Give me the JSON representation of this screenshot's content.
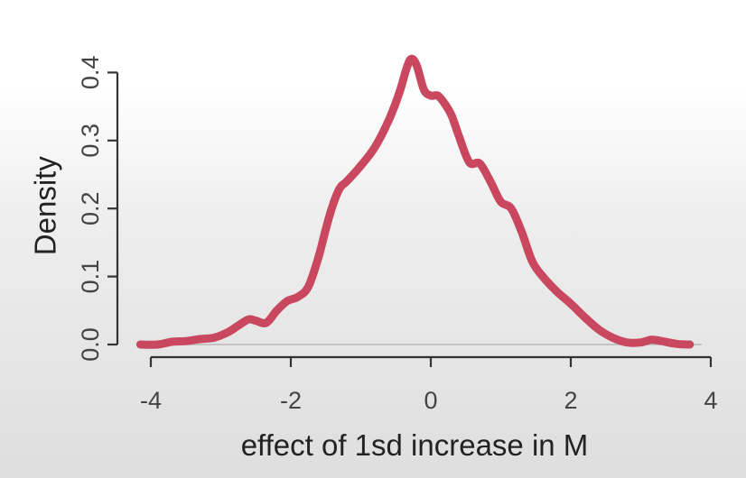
{
  "chart_data": {
    "type": "line",
    "title": "",
    "xlabel": "effect of 1sd increase in M",
    "ylabel": "Density",
    "xlim": [
      -4.15,
      4.0
    ],
    "ylim": [
      0.0,
      0.44
    ],
    "x_ticks": [
      -4,
      -2,
      0,
      2,
      4
    ],
    "x_tick_labels": [
      "-4",
      "-2",
      "0",
      "2",
      "4"
    ],
    "y_ticks": [
      0.0,
      0.1,
      0.2,
      0.3,
      0.4
    ],
    "y_tick_labels": [
      "0.0",
      "0.1",
      "0.2",
      "0.3",
      "0.4"
    ],
    "grid": false,
    "reference_line_y": 0.0,
    "series": [
      {
        "color": "#c9485f",
        "x": [
          -4.15,
          -3.9,
          -3.7,
          -3.5,
          -3.3,
          -3.1,
          -2.9,
          -2.75,
          -2.6,
          -2.5,
          -2.35,
          -2.2,
          -2.05,
          -1.9,
          -1.75,
          -1.6,
          -1.5,
          -1.4,
          -1.3,
          -1.2,
          -1.0,
          -0.8,
          -0.6,
          -0.45,
          -0.35,
          -0.28,
          -0.2,
          -0.1,
          0.0,
          0.1,
          0.2,
          0.3,
          0.4,
          0.55,
          0.7,
          0.85,
          1.0,
          1.15,
          1.3,
          1.45,
          1.6,
          1.8,
          2.0,
          2.2,
          2.4,
          2.6,
          2.8,
          3.0,
          3.15,
          3.3,
          3.5,
          3.7
        ],
        "y": [
          0.0,
          0.0,
          0.004,
          0.005,
          0.008,
          0.01,
          0.018,
          0.028,
          0.037,
          0.035,
          0.032,
          0.05,
          0.064,
          0.07,
          0.085,
          0.13,
          0.17,
          0.205,
          0.23,
          0.24,
          0.263,
          0.29,
          0.33,
          0.37,
          0.405,
          0.42,
          0.41,
          0.375,
          0.366,
          0.366,
          0.354,
          0.336,
          0.307,
          0.268,
          0.266,
          0.24,
          0.21,
          0.2,
          0.165,
          0.122,
          0.1,
          0.078,
          0.06,
          0.04,
          0.022,
          0.01,
          0.003,
          0.003,
          0.007,
          0.005,
          0.001,
          0.0
        ]
      }
    ]
  }
}
